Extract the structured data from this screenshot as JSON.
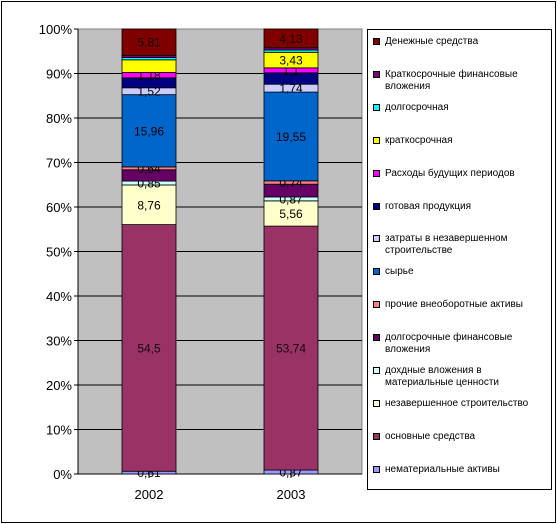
{
  "chart_data": {
    "type": "bar",
    "stacked": "percent",
    "categories": [
      "2002",
      "2003"
    ],
    "ylim": [
      0,
      100
    ],
    "yticks": [
      "0%",
      "10%",
      "20%",
      "30%",
      "40%",
      "50%",
      "60%",
      "70%",
      "80%",
      "90%",
      "100%"
    ],
    "grid": true,
    "legend_position": "right",
    "plot_background": "#c0c0c0",
    "series": [
      {
        "name": "нематериальные активы",
        "color": "#9999ff",
        "values": [
          0.61,
          0.87
        ],
        "labels": [
          "0,61",
          "0,87"
        ]
      },
      {
        "name": "основные средства",
        "color": "#993366",
        "values": [
          54.5,
          53.74
        ],
        "labels": [
          "54,5",
          "53,74"
        ]
      },
      {
        "name": "незавершенное строительство",
        "color": "#ffffcc",
        "values": [
          8.76,
          5.56
        ],
        "labels": [
          "8,76",
          "5,56"
        ]
      },
      {
        "name": "дохдные вложения в материальные ценности",
        "color": "#ccffff",
        "values": [
          0.85,
          0.87
        ],
        "labels": [
          "0,85",
          "0,87"
        ]
      },
      {
        "name": "долгосрочные финансовые вложения",
        "color": "#660066",
        "values": [
          2.5,
          2.8
        ],
        "labels": [
          "",
          ""
        ]
      },
      {
        "name": "прочие внеоборотные активы",
        "color": "#ff8080",
        "values": [
          0.64,
          0.74
        ],
        "labels": [
          "0,64",
          "0,74"
        ]
      },
      {
        "name": "сырье",
        "color": "#0066cc",
        "values": [
          15.96,
          19.55
        ],
        "labels": [
          "15,96",
          "19,55"
        ]
      },
      {
        "name": "затраты в незавершенном строительстве",
        "color": "#ccccff",
        "values": [
          1.52,
          1.74
        ],
        "labels": [
          "1,52",
          "1,74"
        ]
      },
      {
        "name": "готовая продукция",
        "color": "#000080",
        "values": [
          2.2,
          2.5
        ],
        "labels": [
          "",
          ""
        ]
      },
      {
        "name": "Расходы будущих периодов",
        "color": "#ff00ff",
        "values": [
          1.18,
          1.1
        ],
        "labels": [
          "1,18",
          "1,1"
        ]
      },
      {
        "name": "краткосрочная",
        "color": "#ffff00",
        "values": [
          2.8,
          3.43
        ],
        "labels": [
          "",
          "3,43"
        ]
      },
      {
        "name": "долгосрочная",
        "color": "#00ffff",
        "values": [
          0.5,
          0.5
        ],
        "labels": [
          "",
          ""
        ]
      },
      {
        "name": "Краткосрочные финансовые вложения",
        "color": "#800080",
        "values": [
          0.5,
          0.5
        ],
        "labels": [
          "",
          ""
        ]
      },
      {
        "name": "Денежные средства",
        "color": "#800000",
        "values": [
          5.81,
          4.13
        ],
        "labels": [
          "5,81",
          "4,13"
        ]
      }
    ]
  }
}
